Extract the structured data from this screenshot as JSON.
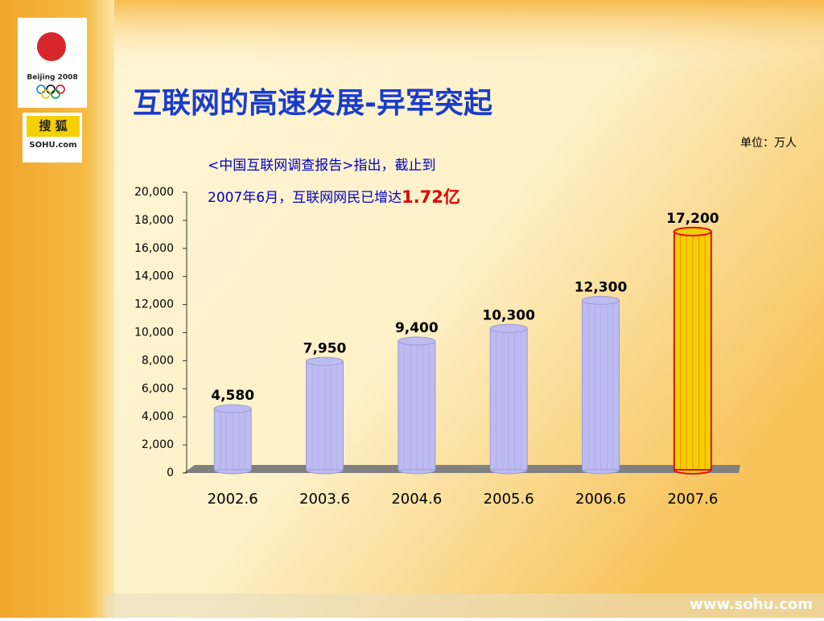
{
  "logo": {
    "title": "Beijing 2008",
    "sponsor": "搜 狐",
    "sponsor_url": "SOHU.com"
  },
  "footer": "www.sohu.com",
  "chart_data": {
    "type": "bar",
    "title": "互联网的高速发展-异军突起",
    "unit": "单位：万人",
    "annotation": [
      "<中国互联网调查报告>指出，截止到",
      "2007年6月，互联网网民已增达",
      "1.72亿"
    ],
    "categories": [
      "2002.6",
      "2003.6",
      "2004.6",
      "2005.6",
      "2006.6",
      "2007.6"
    ],
    "values": [
      4580,
      7950,
      9400,
      10300,
      12300,
      17200
    ],
    "value_labels": [
      "4,580",
      "7,950",
      "9,400",
      "10,300",
      "12,300",
      "17,200"
    ],
    "colors": [
      "#bcbcf2",
      "#bcbcf2",
      "#bcbcf2",
      "#bcbcf2",
      "#bcbcf2",
      "#f2d000"
    ],
    "outline_colors": [
      "#9a9ad0",
      "#9a9ad0",
      "#9a9ad0",
      "#9a9ad0",
      "#9a9ad0",
      "#e01010"
    ],
    "ylim": [
      0,
      20000
    ],
    "yticks": [
      0,
      {
        "value": 2000,
        "label": "2,000"
      },
      {
        "value": 4000,
        "label": "4,000"
      },
      {
        "value": 6000,
        "label": "6,000"
      },
      {
        "value": 8000,
        "label": "8,000"
      },
      {
        "value": 10000,
        "label": "10,000"
      },
      {
        "value": 12000,
        "label": "12,000"
      },
      {
        "value": 14000,
        "label": "14,000"
      },
      {
        "value": 16000,
        "label": "16,000"
      },
      {
        "value": 18000,
        "label": "18,000"
      },
      {
        "value": 20000,
        "label": "20,000"
      }
    ],
    "grid": false
  }
}
